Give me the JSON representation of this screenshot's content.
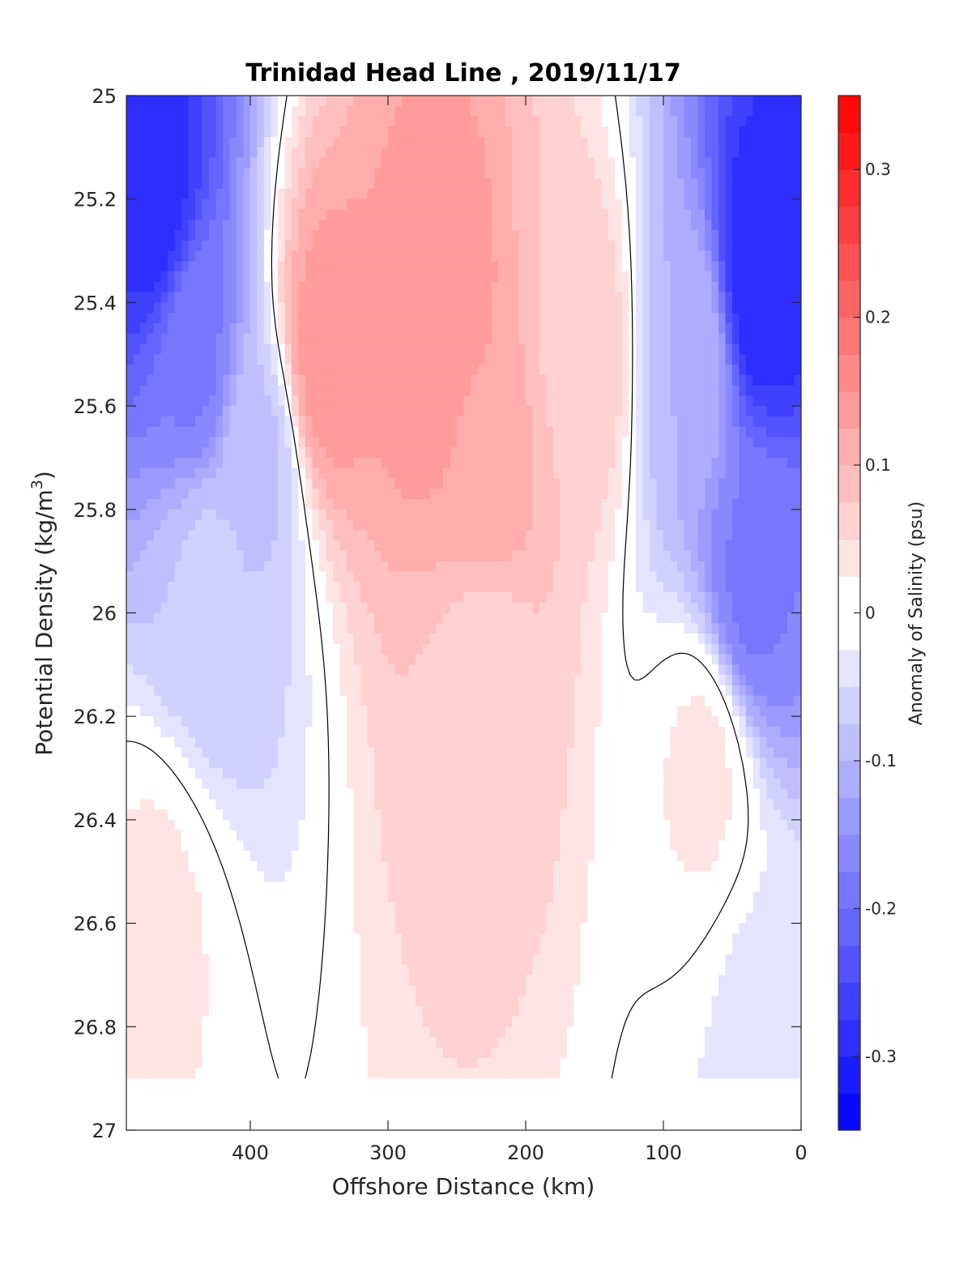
{
  "chart_data": {
    "type": "heatmap",
    "title": "Trinidad Head Line , 2019/11/17",
    "xlabel": "Offshore Distance (km)",
    "ylabel": "Potential Density (kg/m",
    "ylabel_sup": "3",
    "ylabel_close": ")",
    "colorbar_label": "Anomaly of Salinity (psu)",
    "xlim": [
      490,
      0
    ],
    "ylim": [
      25,
      27
    ],
    "x_ticks": [
      {
        "value": 400,
        "label": "400"
      },
      {
        "value": 300,
        "label": "300"
      },
      {
        "value": 200,
        "label": "200"
      },
      {
        "value": 100,
        "label": "100"
      },
      {
        "value": 0,
        "label": "0"
      }
    ],
    "y_ticks": [
      {
        "value": 25,
        "label": "25"
      },
      {
        "value": 25.2,
        "label": "25.2"
      },
      {
        "value": 25.4,
        "label": "25.4"
      },
      {
        "value": 25.6,
        "label": "25.6"
      },
      {
        "value": 25.8,
        "label": "25.8"
      },
      {
        "value": 26,
        "label": "26"
      },
      {
        "value": 26.2,
        "label": "26.2"
      },
      {
        "value": 26.4,
        "label": "26.4"
      },
      {
        "value": 26.6,
        "label": "26.6"
      },
      {
        "value": 26.8,
        "label": "26.8"
      },
      {
        "value": 27,
        "label": "27"
      }
    ],
    "colorbar_range": [
      -0.35,
      0.35
    ],
    "colorbar_step": 0.025,
    "colorbar_ticks": [
      {
        "value": 0.3,
        "label": "0.3"
      },
      {
        "value": 0.2,
        "label": "0.2"
      },
      {
        "value": 0.1,
        "label": "0.1"
      },
      {
        "value": 0,
        "label": "0"
      },
      {
        "value": -0.1,
        "label": "-0.1"
      },
      {
        "value": -0.2,
        "label": "-0.2"
      },
      {
        "value": -0.3,
        "label": "-0.3"
      }
    ],
    "colormap": {
      "negative": "#0000ff",
      "zero": "#ffffff",
      "positive": "#ff0000"
    },
    "zero_contour_color": "#000000",
    "data_bottom_density": 26.9,
    "field_features": [
      {
        "distance_km": 470,
        "density": 25.2,
        "anomaly": -0.29
      },
      {
        "distance_km": 440,
        "density": 25.5,
        "anomaly": -0.18
      },
      {
        "distance_km": 430,
        "density": 25.95,
        "anomaly": -0.07
      },
      {
        "distance_km": 395,
        "density": 25.7,
        "anomaly": -0.08
      },
      {
        "distance_km": 345,
        "density": 25.5,
        "anomaly": 0.14
      },
      {
        "distance_km": 265,
        "density": 25.45,
        "anomaly": 0.15
      },
      {
        "distance_km": 230,
        "density": 25.7,
        "anomaly": 0.12
      },
      {
        "distance_km": 230,
        "density": 26.15,
        "anomaly": 0.06
      },
      {
        "distance_km": 160,
        "density": 25.5,
        "anomaly": 0.07
      },
      {
        "distance_km": 80,
        "density": 25.5,
        "anomaly": -0.1
      },
      {
        "distance_km": 30,
        "density": 25.35,
        "anomaly": -0.3
      },
      {
        "distance_km": 35,
        "density": 25.95,
        "anomaly": -0.18
      },
      {
        "distance_km": 70,
        "density": 26.3,
        "anomaly": 0.03
      },
      {
        "distance_km": 470,
        "density": 26.6,
        "anomaly": 0.03
      },
      {
        "distance_km": 30,
        "density": 26.8,
        "anomaly": -0.03
      }
    ]
  }
}
